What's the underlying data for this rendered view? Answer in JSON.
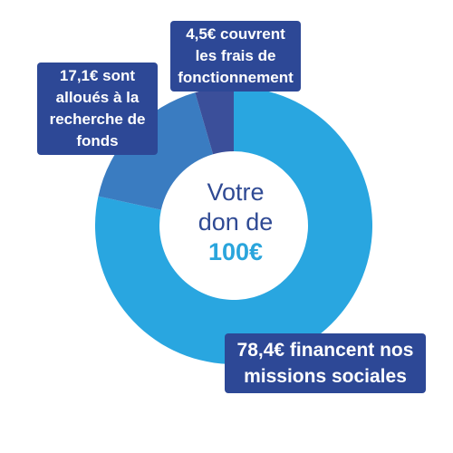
{
  "chart_data": {
    "type": "pie",
    "center": {
      "line1": "Votre",
      "line2": "don de",
      "amount": "100€"
    },
    "slices": [
      {
        "label": "78,4€ financent nos missions sociales",
        "value": 78.4,
        "color": "#29a6e0"
      },
      {
        "label": "17,1€ sont alloués à la recherche de fonds",
        "value": 17.1,
        "color": "#3a7cc1"
      },
      {
        "label": "4,5€ couvrent les frais de fonctionnement",
        "value": 4.5,
        "color": "#3b4f9a"
      }
    ],
    "label_color": "#2d4896",
    "center_text_color": "#2f4a94",
    "amount_color": "#2aa5dc"
  },
  "labels": {
    "fonctionnement": {
      "line1": "4,5€ couvrent",
      "line2": "les frais de",
      "line3": "fonctionnement"
    },
    "recherche": {
      "line1": "17,1€ sont",
      "line2": "alloués à la",
      "line3": "recherche de",
      "line4": "fonds"
    },
    "missions": {
      "line1": "78,4€ financent nos",
      "line2": "missions sociales"
    }
  }
}
